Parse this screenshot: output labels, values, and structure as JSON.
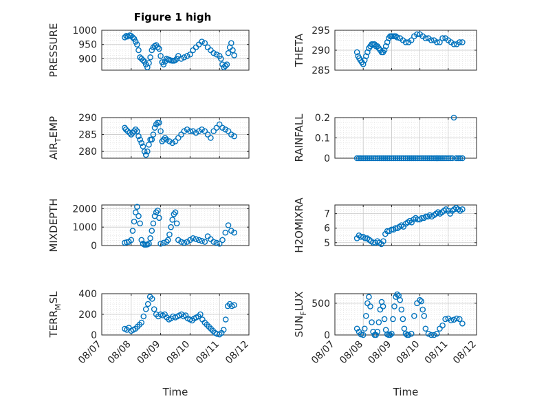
{
  "figure": {
    "title": "Figure 1 high",
    "marker_color": "#0072BD"
  },
  "chart_data": [
    {
      "type": "scatter",
      "ylabel": "PRESSURE",
      "ylim": [
        860,
        1000
      ],
      "yticks": [
        900,
        950,
        1000
      ],
      "grid": true,
      "x": [
        0.78,
        0.83,
        0.88,
        0.95,
        1.0,
        1.05,
        1.1,
        1.15,
        1.2,
        1.25,
        1.3,
        1.35,
        1.4,
        1.45,
        1.5,
        1.55,
        1.6,
        1.65,
        1.7,
        1.75,
        1.8,
        1.85,
        1.9,
        1.95,
        2.0,
        2.05,
        2.1,
        2.15,
        2.2,
        2.25,
        2.3,
        2.35,
        2.4,
        2.45,
        2.5,
        2.55,
        2.6,
        2.7,
        2.8,
        2.9,
        3.0,
        3.1,
        3.2,
        3.3,
        3.4,
        3.5,
        3.6,
        3.7,
        3.8,
        3.9,
        4.0,
        4.05,
        4.1,
        4.15,
        4.2,
        4.25,
        4.3,
        4.35,
        4.4,
        4.45,
        4.5
      ],
      "y": [
        975,
        980,
        978,
        982,
        980,
        975,
        970,
        960,
        950,
        930,
        905,
        900,
        895,
        890,
        880,
        870,
        885,
        905,
        930,
        940,
        945,
        948,
        940,
        935,
        910,
        888,
        880,
        890,
        900,
        898,
        896,
        894,
        893,
        893,
        895,
        900,
        910,
        900,
        905,
        910,
        915,
        930,
        940,
        950,
        960,
        955,
        940,
        930,
        920,
        915,
        910,
        900,
        880,
        870,
        875,
        880,
        920,
        940,
        955,
        930,
        912
      ]
    },
    {
      "type": "scatter",
      "ylabel": "THETA",
      "ylim": [
        285,
        295
      ],
      "yticks": [
        285,
        290,
        295
      ],
      "grid": true,
      "x": [
        0.78,
        0.82,
        0.86,
        0.9,
        0.95,
        1.0,
        1.05,
        1.1,
        1.15,
        1.2,
        1.25,
        1.3,
        1.35,
        1.4,
        1.45,
        1.5,
        1.55,
        1.6,
        1.65,
        1.7,
        1.75,
        1.8,
        1.85,
        1.9,
        1.95,
        2.0,
        2.05,
        2.1,
        2.15,
        2.2,
        2.3,
        2.4,
        2.5,
        2.6,
        2.7,
        2.8,
        2.9,
        3.0,
        3.1,
        3.2,
        3.3,
        3.4,
        3.5,
        3.6,
        3.7,
        3.8,
        3.9,
        4.0,
        4.1,
        4.2,
        4.3,
        4.4,
        4.5
      ],
      "y": [
        289.5,
        288.5,
        288,
        287.5,
        287,
        286.5,
        287.5,
        288.5,
        289.5,
        290.5,
        291,
        291.5,
        291.5,
        291.5,
        291,
        291,
        290.5,
        290,
        289.5,
        289.5,
        290,
        291,
        292,
        293,
        293.5,
        293.5,
        293.5,
        293.5,
        293.5,
        293.2,
        293,
        292.5,
        292,
        292,
        292.5,
        293.5,
        294,
        294,
        293.5,
        293,
        293,
        292.5,
        292.5,
        292,
        292,
        293,
        293,
        292.5,
        292,
        291.5,
        291.5,
        292,
        292
      ]
    },
    {
      "type": "scatter",
      "ylabel": "AIR_TEMP",
      "ylim": [
        278,
        290
      ],
      "yticks": [
        280,
        285,
        290
      ],
      "grid": true,
      "x": [
        0.78,
        0.82,
        0.88,
        0.95,
        1.0,
        1.05,
        1.1,
        1.15,
        1.2,
        1.25,
        1.3,
        1.35,
        1.4,
        1.45,
        1.5,
        1.55,
        1.6,
        1.65,
        1.7,
        1.75,
        1.8,
        1.85,
        1.9,
        1.95,
        2.0,
        2.05,
        2.1,
        2.15,
        2.2,
        2.3,
        2.4,
        2.5,
        2.6,
        2.7,
        2.8,
        2.9,
        3.0,
        3.1,
        3.2,
        3.3,
        3.4,
        3.5,
        3.6,
        3.7,
        3.8,
        3.9,
        4.0,
        4.1,
        4.2,
        4.3,
        4.4,
        4.5
      ],
      "y": [
        287,
        286.5,
        286,
        285.5,
        285,
        285.5,
        286,
        286.5,
        286,
        284.5,
        283.5,
        282.5,
        281.5,
        280,
        279,
        280,
        282,
        283.5,
        283.5,
        285,
        287,
        288,
        288.5,
        288.5,
        286,
        283,
        283.5,
        284,
        283.5,
        283,
        282.5,
        283,
        284,
        285,
        286,
        286.5,
        286,
        286,
        285.5,
        286,
        286.5,
        286,
        285,
        284,
        286,
        287,
        288,
        287,
        286.5,
        286,
        285,
        284.5
      ]
    },
    {
      "type": "scatter",
      "ylabel": "RAINFALL",
      "ylim": [
        0,
        0.2
      ],
      "yticks": [
        0,
        0.1,
        0.2
      ],
      "grid": true,
      "x": [
        0.78,
        0.85,
        0.92,
        1.0,
        1.07,
        1.14,
        1.21,
        1.28,
        1.35,
        1.42,
        1.5,
        1.57,
        1.64,
        1.71,
        1.78,
        1.85,
        1.92,
        2.0,
        2.07,
        2.14,
        2.21,
        2.28,
        2.35,
        2.42,
        2.5,
        2.57,
        2.64,
        2.71,
        2.78,
        2.85,
        2.92,
        3.0,
        3.07,
        3.14,
        3.21,
        3.28,
        3.35,
        3.42,
        3.5,
        3.57,
        3.64,
        3.71,
        3.78,
        3.85,
        3.92,
        4.0,
        4.07,
        4.14,
        4.2,
        4.28,
        4.35,
        4.42,
        4.5
      ],
      "y": [
        0,
        0,
        0,
        0,
        0,
        0,
        0,
        0,
        0,
        0,
        0,
        0,
        0,
        0,
        0,
        0,
        0,
        0,
        0,
        0,
        0,
        0,
        0,
        0,
        0,
        0,
        0,
        0,
        0,
        0,
        0,
        0,
        0,
        0,
        0,
        0,
        0,
        0,
        0,
        0,
        0,
        0,
        0,
        0,
        0,
        0,
        0,
        0,
        0.2,
        0,
        0,
        0,
        0
      ]
    },
    {
      "type": "scatter",
      "ylabel": "MIXDEPTH",
      "ylim": [
        0,
        2200
      ],
      "yticks": [
        0,
        1000,
        2000
      ],
      "grid": true,
      "x": [
        0.78,
        0.85,
        0.92,
        1.0,
        1.05,
        1.1,
        1.15,
        1.2,
        1.25,
        1.3,
        1.35,
        1.4,
        1.45,
        1.5,
        1.55,
        1.6,
        1.65,
        1.7,
        1.75,
        1.8,
        1.85,
        1.9,
        1.95,
        2.0,
        2.1,
        2.2,
        2.25,
        2.3,
        2.35,
        2.4,
        2.45,
        2.5,
        2.55,
        2.6,
        2.7,
        2.8,
        2.9,
        3.0,
        3.1,
        3.2,
        3.3,
        3.4,
        3.5,
        3.6,
        3.7,
        3.8,
        3.9,
        4.0,
        4.1,
        4.2,
        4.3,
        4.4,
        4.5
      ],
      "y": [
        150,
        180,
        200,
        300,
        800,
        1300,
        1800,
        2100,
        1600,
        1200,
        300,
        100,
        50,
        50,
        60,
        100,
        400,
        800,
        1200,
        1600,
        1800,
        1900,
        1500,
        100,
        150,
        200,
        300,
        600,
        1000,
        1400,
        1700,
        1800,
        1200,
        300,
        200,
        150,
        200,
        300,
        400,
        350,
        300,
        250,
        200,
        500,
        350,
        200,
        150,
        100,
        300,
        700,
        1100,
        800,
        700
      ]
    },
    {
      "type": "scatter",
      "ylabel": "H2OMIXRA",
      "ylim": [
        4.8,
        7.6
      ],
      "yticks": [
        5,
        6,
        7
      ],
      "grid": true,
      "x": [
        0.78,
        0.85,
        0.92,
        1.0,
        1.07,
        1.14,
        1.21,
        1.28,
        1.35,
        1.42,
        1.5,
        1.57,
        1.64,
        1.71,
        1.78,
        1.85,
        1.92,
        2.0,
        2.07,
        2.14,
        2.21,
        2.28,
        2.35,
        2.42,
        2.5,
        2.57,
        2.64,
        2.71,
        2.78,
        2.85,
        2.92,
        3.0,
        3.07,
        3.14,
        3.21,
        3.28,
        3.35,
        3.42,
        3.5,
        3.57,
        3.64,
        3.71,
        3.78,
        3.85,
        3.92,
        4.0,
        4.07,
        4.14,
        4.21,
        4.28,
        4.35,
        4.42,
        4.5
      ],
      "y": [
        5.3,
        5.5,
        5.4,
        5.4,
        5.3,
        5.3,
        5.2,
        5.1,
        5.0,
        5.0,
        5.1,
        5.0,
        4.9,
        5.1,
        5.6,
        5.8,
        5.8,
        5.9,
        5.9,
        6.0,
        6.0,
        6.1,
        6.2,
        6.1,
        6.3,
        6.4,
        6.5,
        6.4,
        6.6,
        6.7,
        6.6,
        6.6,
        6.7,
        6.7,
        6.8,
        6.8,
        6.9,
        6.8,
        6.9,
        7.0,
        7.1,
        7.0,
        7.1,
        7.2,
        7.3,
        7.2,
        7.0,
        7.2,
        7.3,
        7.4,
        7.3,
        7.2,
        7.3
      ]
    },
    {
      "type": "scatter",
      "ylabel": "TERR_MSL",
      "ylim": [
        0,
        400
      ],
      "yticks": [
        0,
        200,
        400
      ],
      "grid": true,
      "x": [
        0.78,
        0.85,
        0.92,
        1.0,
        1.07,
        1.14,
        1.21,
        1.28,
        1.35,
        1.42,
        1.5,
        1.57,
        1.64,
        1.71,
        1.78,
        1.85,
        1.92,
        2.0,
        2.07,
        2.14,
        2.21,
        2.28,
        2.35,
        2.42,
        2.5,
        2.57,
        2.64,
        2.71,
        2.78,
        2.85,
        2.92,
        3.0,
        3.07,
        3.14,
        3.21,
        3.28,
        3.35,
        3.42,
        3.5,
        3.57,
        3.64,
        3.71,
        3.78,
        3.85,
        3.92,
        4.0,
        4.07,
        4.14,
        4.21,
        4.28,
        4.35,
        4.42,
        4.5
      ],
      "y": [
        60,
        50,
        70,
        40,
        50,
        60,
        80,
        100,
        120,
        180,
        250,
        300,
        370,
        350,
        250,
        200,
        180,
        200,
        190,
        200,
        170,
        150,
        160,
        180,
        170,
        180,
        190,
        200,
        180,
        190,
        160,
        150,
        140,
        160,
        170,
        180,
        200,
        150,
        120,
        100,
        80,
        60,
        40,
        20,
        10,
        5,
        20,
        50,
        150,
        280,
        300,
        280,
        290
      ]
    },
    {
      "type": "scatter",
      "ylabel": "SUN_FLUX",
      "ylim": [
        0,
        650
      ],
      "yticks": [
        0,
        500
      ],
      "grid": true,
      "x": [
        0.78,
        0.85,
        0.92,
        1.0,
        1.05,
        1.1,
        1.15,
        1.2,
        1.25,
        1.3,
        1.35,
        1.4,
        1.45,
        1.5,
        1.55,
        1.6,
        1.65,
        1.7,
        1.75,
        1.8,
        1.85,
        1.9,
        1.95,
        2.0,
        2.05,
        2.1,
        2.15,
        2.2,
        2.25,
        2.3,
        2.35,
        2.4,
        2.45,
        2.5,
        2.55,
        2.6,
        2.7,
        2.8,
        2.9,
        3.0,
        3.05,
        3.1,
        3.15,
        3.2,
        3.3,
        3.4,
        3.5,
        3.6,
        3.7,
        3.8,
        3.9,
        4.0,
        4.1,
        4.2,
        4.3,
        4.4,
        4.5
      ],
      "y": [
        100,
        50,
        10,
        0,
        100,
        300,
        500,
        600,
        450,
        200,
        50,
        0,
        0,
        50,
        200,
        400,
        520,
        450,
        250,
        80,
        10,
        0,
        0,
        20,
        250,
        450,
        600,
        640,
        620,
        550,
        400,
        250,
        100,
        20,
        0,
        0,
        20,
        300,
        500,
        550,
        530,
        400,
        300,
        100,
        20,
        0,
        0,
        20,
        100,
        150,
        250,
        260,
        230,
        240,
        260,
        250,
        180
      ]
    }
  ],
  "shared_axis": {
    "xlim": [
      0,
      5
    ],
    "xticklabels": [
      "08/07",
      "08/08",
      "08/09",
      "08/10",
      "08/11",
      "08/12"
    ],
    "xlabel": "Time"
  }
}
